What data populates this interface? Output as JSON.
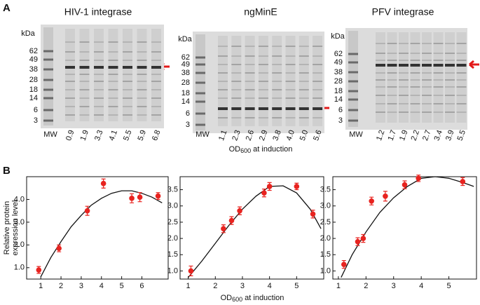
{
  "panel_labels": [
    "A",
    "B"
  ],
  "gels": [
    {
      "title": "HIV-1 integrase",
      "unit": "kDa",
      "markers": [
        62,
        49,
        38,
        28,
        18,
        14,
        6,
        3
      ],
      "marker_lane": "MW",
      "lanes": [
        "0.9",
        "1.9",
        "3.3",
        "4.1",
        "5.5",
        "5.9",
        "6.8"
      ]
    },
    {
      "title": "ngMinE",
      "unit": "kDa",
      "markers": [
        62,
        49,
        38,
        28,
        18,
        14,
        6,
        3
      ],
      "marker_lane": "MW",
      "lanes": [
        "1.1",
        "2.3",
        "2.6",
        "2.9",
        "3.8",
        "4.0",
        "5.0",
        "5.6"
      ]
    },
    {
      "title": "PFV integrase",
      "unit": "kDa",
      "markers": [
        62,
        49,
        38,
        28,
        18,
        14,
        6,
        3
      ],
      "marker_lane": "MW",
      "lanes": [
        "1.2",
        "1.7",
        "1.9",
        "2.2",
        "2.7",
        "3.4",
        "3.9",
        "5.5"
      ]
    }
  ],
  "x_label": {
    "main": "OD",
    "sub": "600",
    "rest": " at induction"
  },
  "y_label": [
    "Relative protein",
    "expression level"
  ],
  "chart_data": [
    {
      "type": "scatter",
      "color": "#e8231f",
      "x": [
        0.9,
        1.9,
        3.3,
        4.1,
        5.5,
        5.9,
        6.8
      ],
      "values": [
        0.9,
        1.85,
        3.5,
        4.7,
        4.05,
        4.1,
        4.15
      ],
      "errors": [
        0.15,
        0.15,
        0.2,
        0.2,
        0.2,
        0.2,
        0.15
      ],
      "fit": {
        "x": [
          1,
          1.5,
          2,
          2.5,
          3,
          3.5,
          4,
          4.5,
          5,
          5.5,
          6,
          6.5,
          7
        ],
        "y": [
          0.6,
          1.45,
          2.15,
          2.8,
          3.3,
          3.75,
          4.05,
          4.27,
          4.38,
          4.38,
          4.27,
          4.1,
          3.85
        ]
      },
      "xlim": [
        0.3,
        7.3
      ],
      "xticks": [
        1,
        2,
        3,
        4,
        5,
        6
      ],
      "ylim": [
        0.5,
        5.0
      ],
      "yticks": [
        {
          "value": 1,
          "label": "1.0"
        },
        {
          "value": 2,
          "label": "2.0"
        },
        {
          "value": 3,
          "label": "3.0"
        },
        {
          "value": 4,
          "label": "4.0"
        }
      ]
    },
    {
      "type": "scatter",
      "color": "#e8231f",
      "x": [
        1.1,
        2.3,
        2.6,
        2.9,
        3.8,
        4.0,
        5.0,
        5.6
      ],
      "values": [
        1.0,
        2.3,
        2.55,
        2.85,
        3.4,
        3.6,
        3.6,
        2.75
      ],
      "errors": [
        0.15,
        0.12,
        0.12,
        0.12,
        0.12,
        0.12,
        0.1,
        0.12
      ],
      "fit": {
        "x": [
          1,
          1.5,
          2,
          2.5,
          3,
          3.5,
          4,
          4.5,
          5,
          5.5,
          5.9
        ],
        "y": [
          0.8,
          1.3,
          1.85,
          2.4,
          2.9,
          3.3,
          3.6,
          3.62,
          3.4,
          2.9,
          2.3
        ]
      },
      "xlim": [
        0.7,
        6.0
      ],
      "xticks": [
        1,
        2,
        3,
        4,
        5
      ],
      "ylim": [
        0.75,
        3.9
      ],
      "yticks": [
        {
          "value": 1,
          "label": "1.0"
        },
        1.5,
        {
          "value": 2,
          "label": "2.0"
        },
        2.5,
        {
          "value": 3,
          "label": "3.0"
        },
        3.5
      ]
    },
    {
      "type": "scatter",
      "color": "#e8231f",
      "x": [
        1.2,
        1.7,
        1.9,
        2.2,
        2.7,
        3.4,
        3.9,
        5.5
      ],
      "values": [
        1.2,
        1.9,
        2.0,
        3.15,
        3.3,
        3.65,
        3.85,
        3.75
      ],
      "errors": [
        0.12,
        0.12,
        0.12,
        0.12,
        0.15,
        0.12,
        0.1,
        0.12
      ],
      "fit": {
        "x": [
          1.1,
          1.5,
          2,
          2.5,
          3,
          3.5,
          4,
          4.5,
          5,
          5.5,
          5.9
        ],
        "y": [
          0.8,
          1.5,
          2.2,
          2.8,
          3.25,
          3.6,
          3.85,
          3.9,
          3.85,
          3.72,
          3.6
        ]
      },
      "xlim": [
        0.8,
        6.0
      ],
      "xticks": [
        1,
        2,
        3,
        4,
        5
      ],
      "ylim": [
        0.75,
        3.9
      ],
      "yticks": [
        {
          "value": 1,
          "label": "1.0"
        },
        1.5,
        {
          "value": 2,
          "label": "2.0"
        },
        2.5,
        {
          "value": 3,
          "label": "3.0"
        },
        3.5
      ]
    }
  ]
}
